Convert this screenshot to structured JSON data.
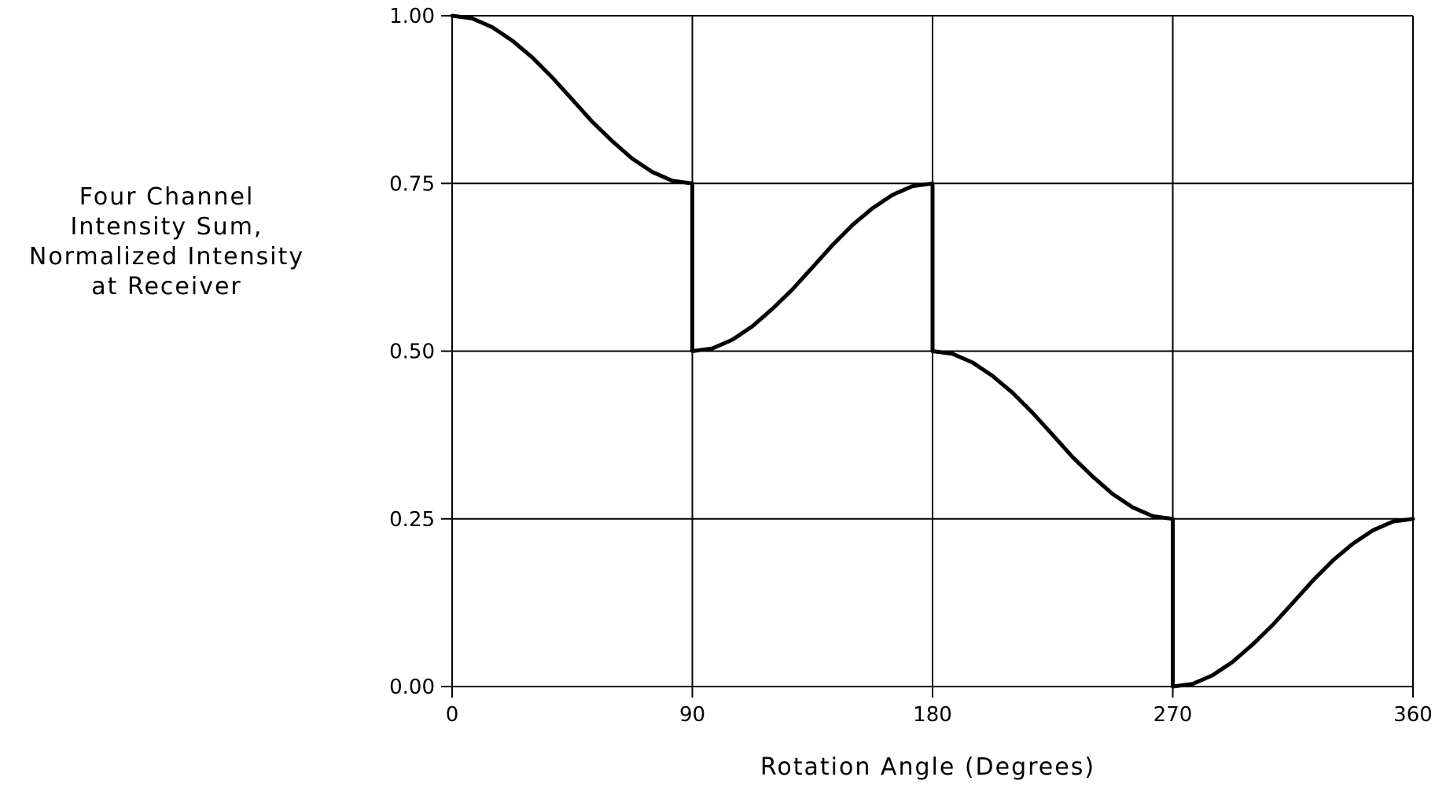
{
  "chart_data": {
    "type": "line",
    "title": "",
    "xlabel": "Rotation Angle (Degrees)",
    "ylabel_lines": [
      "Four Channel",
      "Intensity Sum,",
      "Normalized Intensity",
      "at Receiver"
    ],
    "xlim": [
      0,
      360
    ],
    "ylim": [
      0,
      1
    ],
    "grid": true,
    "x_ticks": [
      0,
      90,
      180,
      270,
      360
    ],
    "x_tick_labels": [
      "0",
      "90",
      "180",
      "270",
      "360"
    ],
    "y_ticks": [
      0,
      0.25,
      0.5,
      0.75,
      1
    ],
    "y_tick_labels": [
      "0.00",
      "0.25",
      "0.50",
      "0.75",
      "1.00"
    ],
    "series": [
      {
        "color": "#000000",
        "x": [
          0,
          7.5,
          15,
          22.5,
          30,
          37.5,
          45,
          52.5,
          60,
          67.5,
          75,
          82.5,
          90,
          90,
          97.5,
          105,
          112.5,
          120,
          127.5,
          135,
          142.5,
          150,
          157.5,
          165,
          172.5,
          180,
          180,
          187.5,
          195,
          202.5,
          210,
          217.5,
          225,
          232.5,
          240,
          247.5,
          255,
          262.5,
          270,
          270,
          277.5,
          285,
          292.5,
          300,
          307.5,
          315,
          322.5,
          330,
          337.5,
          345,
          352.5,
          360
        ],
        "y": [
          1.0,
          0.996,
          0.983,
          0.963,
          0.938,
          0.908,
          0.875,
          0.842,
          0.813,
          0.787,
          0.767,
          0.754,
          0.75,
          0.5,
          0.504,
          0.517,
          0.537,
          0.563,
          0.592,
          0.625,
          0.658,
          0.688,
          0.713,
          0.733,
          0.746,
          0.75,
          0.5,
          0.496,
          0.483,
          0.463,
          0.438,
          0.408,
          0.375,
          0.342,
          0.313,
          0.287,
          0.267,
          0.254,
          0.25,
          0.0,
          0.004,
          0.017,
          0.037,
          0.063,
          0.092,
          0.125,
          0.158,
          0.188,
          0.213,
          0.233,
          0.246,
          0.25
        ]
      }
    ]
  }
}
